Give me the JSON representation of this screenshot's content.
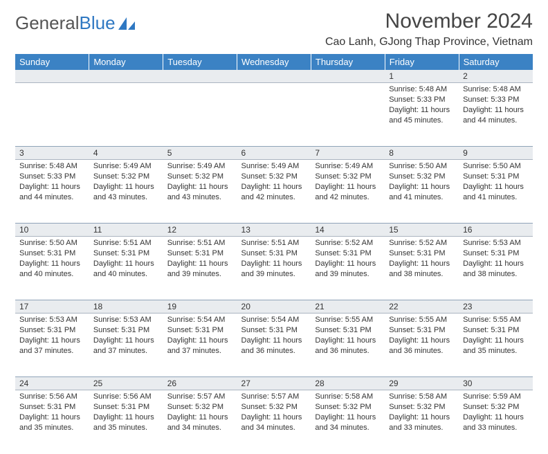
{
  "brand": {
    "part1": "General",
    "part2": "Blue"
  },
  "title": "November 2024",
  "location": "Cao Lanh, GJong Thap Province, Vietnam",
  "colors": {
    "header_bg": "#3b82c4",
    "header_text": "#ffffff",
    "daynum_bg": "#e9ecef",
    "border": "#8fa3b8",
    "text": "#333333",
    "brand_gray": "#555555",
    "brand_blue": "#2f78c2"
  },
  "weekdays": [
    "Sunday",
    "Monday",
    "Tuesday",
    "Wednesday",
    "Thursday",
    "Friday",
    "Saturday"
  ],
  "weeks": [
    {
      "nums": [
        "",
        "",
        "",
        "",
        "",
        "1",
        "2"
      ],
      "cells": [
        null,
        null,
        null,
        null,
        null,
        {
          "sunrise": "5:48 AM",
          "sunset": "5:33 PM",
          "daylight": "11 hours and 45 minutes."
        },
        {
          "sunrise": "5:48 AM",
          "sunset": "5:33 PM",
          "daylight": "11 hours and 44 minutes."
        }
      ]
    },
    {
      "nums": [
        "3",
        "4",
        "5",
        "6",
        "7",
        "8",
        "9"
      ],
      "cells": [
        {
          "sunrise": "5:48 AM",
          "sunset": "5:33 PM",
          "daylight": "11 hours and 44 minutes."
        },
        {
          "sunrise": "5:49 AM",
          "sunset": "5:32 PM",
          "daylight": "11 hours and 43 minutes."
        },
        {
          "sunrise": "5:49 AM",
          "sunset": "5:32 PM",
          "daylight": "11 hours and 43 minutes."
        },
        {
          "sunrise": "5:49 AM",
          "sunset": "5:32 PM",
          "daylight": "11 hours and 42 minutes."
        },
        {
          "sunrise": "5:49 AM",
          "sunset": "5:32 PM",
          "daylight": "11 hours and 42 minutes."
        },
        {
          "sunrise": "5:50 AM",
          "sunset": "5:32 PM",
          "daylight": "11 hours and 41 minutes."
        },
        {
          "sunrise": "5:50 AM",
          "sunset": "5:31 PM",
          "daylight": "11 hours and 41 minutes."
        }
      ]
    },
    {
      "nums": [
        "10",
        "11",
        "12",
        "13",
        "14",
        "15",
        "16"
      ],
      "cells": [
        {
          "sunrise": "5:50 AM",
          "sunset": "5:31 PM",
          "daylight": "11 hours and 40 minutes."
        },
        {
          "sunrise": "5:51 AM",
          "sunset": "5:31 PM",
          "daylight": "11 hours and 40 minutes."
        },
        {
          "sunrise": "5:51 AM",
          "sunset": "5:31 PM",
          "daylight": "11 hours and 39 minutes."
        },
        {
          "sunrise": "5:51 AM",
          "sunset": "5:31 PM",
          "daylight": "11 hours and 39 minutes."
        },
        {
          "sunrise": "5:52 AM",
          "sunset": "5:31 PM",
          "daylight": "11 hours and 39 minutes."
        },
        {
          "sunrise": "5:52 AM",
          "sunset": "5:31 PM",
          "daylight": "11 hours and 38 minutes."
        },
        {
          "sunrise": "5:53 AM",
          "sunset": "5:31 PM",
          "daylight": "11 hours and 38 minutes."
        }
      ]
    },
    {
      "nums": [
        "17",
        "18",
        "19",
        "20",
        "21",
        "22",
        "23"
      ],
      "cells": [
        {
          "sunrise": "5:53 AM",
          "sunset": "5:31 PM",
          "daylight": "11 hours and 37 minutes."
        },
        {
          "sunrise": "5:53 AM",
          "sunset": "5:31 PM",
          "daylight": "11 hours and 37 minutes."
        },
        {
          "sunrise": "5:54 AM",
          "sunset": "5:31 PM",
          "daylight": "11 hours and 37 minutes."
        },
        {
          "sunrise": "5:54 AM",
          "sunset": "5:31 PM",
          "daylight": "11 hours and 36 minutes."
        },
        {
          "sunrise": "5:55 AM",
          "sunset": "5:31 PM",
          "daylight": "11 hours and 36 minutes."
        },
        {
          "sunrise": "5:55 AM",
          "sunset": "5:31 PM",
          "daylight": "11 hours and 36 minutes."
        },
        {
          "sunrise": "5:55 AM",
          "sunset": "5:31 PM",
          "daylight": "11 hours and 35 minutes."
        }
      ]
    },
    {
      "nums": [
        "24",
        "25",
        "26",
        "27",
        "28",
        "29",
        "30"
      ],
      "cells": [
        {
          "sunrise": "5:56 AM",
          "sunset": "5:31 PM",
          "daylight": "11 hours and 35 minutes."
        },
        {
          "sunrise": "5:56 AM",
          "sunset": "5:31 PM",
          "daylight": "11 hours and 35 minutes."
        },
        {
          "sunrise": "5:57 AM",
          "sunset": "5:32 PM",
          "daylight": "11 hours and 34 minutes."
        },
        {
          "sunrise": "5:57 AM",
          "sunset": "5:32 PM",
          "daylight": "11 hours and 34 minutes."
        },
        {
          "sunrise": "5:58 AM",
          "sunset": "5:32 PM",
          "daylight": "11 hours and 34 minutes."
        },
        {
          "sunrise": "5:58 AM",
          "sunset": "5:32 PM",
          "daylight": "11 hours and 33 minutes."
        },
        {
          "sunrise": "5:59 AM",
          "sunset": "5:32 PM",
          "daylight": "11 hours and 33 minutes."
        }
      ]
    }
  ],
  "labels": {
    "sunrise": "Sunrise:",
    "sunset": "Sunset:",
    "daylight": "Daylight:"
  }
}
